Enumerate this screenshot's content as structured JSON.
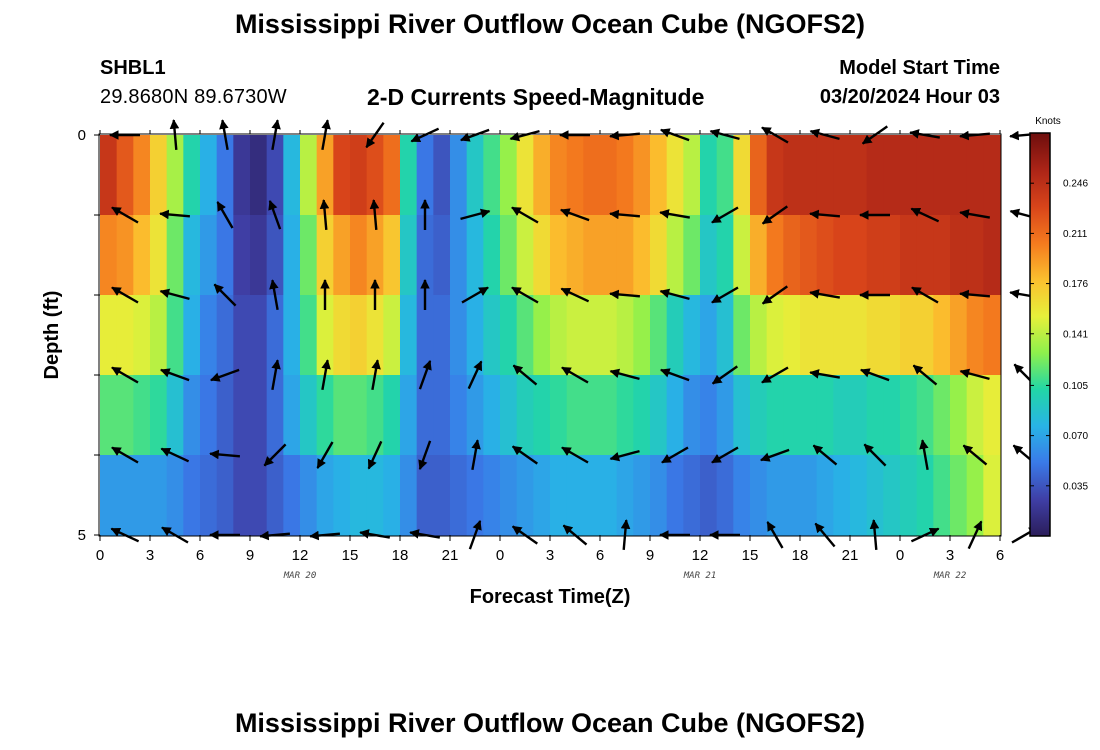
{
  "title": "Mississippi River Outflow Ocean Cube (NGOFS2)",
  "station": {
    "name": "SHBL1",
    "coords": "29.8680N  89.6730W"
  },
  "panel_title": "2-D Currents Speed-Magnitude",
  "model_start": {
    "label": "Model Start Time",
    "value": "03/20/2024 Hour 03"
  },
  "bottom_title": "Mississippi River Outflow Ocean Cube (NGOFS2)",
  "chart_data": {
    "type": "heatmap",
    "xlabel": "Forecast Time(Z)",
    "ylabel": "Depth (ft)",
    "x_tick_labels": [
      "0",
      "3",
      "6",
      "9",
      "12",
      "15",
      "18",
      "21",
      "0",
      "3",
      "6",
      "9",
      "12",
      "15",
      "18",
      "21",
      "0",
      "3",
      "6"
    ],
    "date_labels": [
      {
        "text": "MAR 20",
        "tick_index": 4
      },
      {
        "text": "MAR 21",
        "tick_index": 12
      },
      {
        "text": "MAR 22",
        "tick_index": 17
      }
    ],
    "y_tick_labels": [
      "0",
      "5"
    ],
    "ylim": [
      0,
      5
    ],
    "hours": 54,
    "layers": 5,
    "colorbar": {
      "unit": "Knots",
      "ticks": [
        "0.246",
        "0.211",
        "0.176",
        "0.141",
        "0.105",
        "0.070",
        "0.035"
      ],
      "min": 0.0,
      "max": 0.281,
      "colors": [
        "#2b1d5a",
        "#3f3fa6",
        "#3a7ae8",
        "#28b4e6",
        "#22d6a6",
        "#8ef04c",
        "#e6f03a",
        "#fbbf2e",
        "#f47a1e",
        "#d8441a",
        "#ab2417",
        "#6e0e0d"
      ]
    },
    "speed_profiles": [
      {
        "name": "depth-0",
        "values": [
          0.24,
          0.22,
          0.2,
          0.17,
          0.135,
          0.1,
          0.075,
          0.05,
          0.02,
          0.012,
          0.03,
          0.08,
          0.14,
          0.19,
          0.23,
          0.235,
          0.225,
          0.21,
          0.1,
          0.05,
          0.035,
          0.06,
          0.09,
          0.11,
          0.13,
          0.16,
          0.185,
          0.2,
          0.205,
          0.21,
          0.21,
          0.205,
          0.195,
          0.18,
          0.16,
          0.14,
          0.1,
          0.11,
          0.165,
          0.215,
          0.24,
          0.245,
          0.245,
          0.245,
          0.245,
          0.245,
          0.25,
          0.25,
          0.25,
          0.25,
          0.25,
          0.25,
          0.25,
          0.25,
          0.25
        ]
      },
      {
        "name": "depth-1",
        "values": [
          0.2,
          0.195,
          0.18,
          0.16,
          0.12,
          0.08,
          0.065,
          0.05,
          0.025,
          0.02,
          0.035,
          0.075,
          0.12,
          0.17,
          0.19,
          0.2,
          0.19,
          0.175,
          0.09,
          0.045,
          0.04,
          0.06,
          0.08,
          0.1,
          0.12,
          0.145,
          0.165,
          0.18,
          0.185,
          0.19,
          0.19,
          0.19,
          0.18,
          0.165,
          0.14,
          0.12,
          0.09,
          0.1,
          0.145,
          0.185,
          0.205,
          0.215,
          0.22,
          0.225,
          0.23,
          0.23,
          0.235,
          0.235,
          0.24,
          0.24,
          0.24,
          0.245,
          0.245,
          0.25,
          0.25
        ]
      },
      {
        "name": "depth-2",
        "values": [
          0.155,
          0.155,
          0.15,
          0.14,
          0.11,
          0.075,
          0.055,
          0.045,
          0.03,
          0.03,
          0.045,
          0.075,
          0.11,
          0.15,
          0.165,
          0.17,
          0.16,
          0.145,
          0.08,
          0.045,
          0.045,
          0.06,
          0.075,
          0.09,
          0.1,
          0.115,
          0.13,
          0.14,
          0.145,
          0.145,
          0.145,
          0.14,
          0.13,
          0.115,
          0.095,
          0.08,
          0.07,
          0.085,
          0.12,
          0.14,
          0.15,
          0.155,
          0.16,
          0.16,
          0.16,
          0.16,
          0.165,
          0.165,
          0.17,
          0.17,
          0.18,
          0.19,
          0.2,
          0.205,
          0.21
        ]
      },
      {
        "name": "depth-3",
        "values": [
          0.115,
          0.115,
          0.11,
          0.105,
          0.085,
          0.06,
          0.05,
          0.04,
          0.03,
          0.03,
          0.045,
          0.07,
          0.09,
          0.105,
          0.115,
          0.115,
          0.11,
          0.1,
          0.07,
          0.045,
          0.045,
          0.055,
          0.065,
          0.075,
          0.085,
          0.095,
          0.1,
          0.105,
          0.11,
          0.11,
          0.11,
          0.105,
          0.1,
          0.09,
          0.075,
          0.06,
          0.055,
          0.065,
          0.085,
          0.095,
          0.1,
          0.1,
          0.1,
          0.1,
          0.095,
          0.095,
          0.1,
          0.1,
          0.105,
          0.11,
          0.12,
          0.13,
          0.145,
          0.155,
          0.165
        ]
      },
      {
        "name": "depth-4",
        "values": [
          0.065,
          0.065,
          0.065,
          0.065,
          0.06,
          0.05,
          0.045,
          0.04,
          0.03,
          0.03,
          0.04,
          0.05,
          0.06,
          0.07,
          0.075,
          0.08,
          0.08,
          0.075,
          0.06,
          0.04,
          0.04,
          0.045,
          0.05,
          0.055,
          0.06,
          0.065,
          0.07,
          0.075,
          0.075,
          0.075,
          0.075,
          0.07,
          0.065,
          0.06,
          0.05,
          0.045,
          0.04,
          0.045,
          0.055,
          0.06,
          0.065,
          0.065,
          0.065,
          0.07,
          0.075,
          0.08,
          0.085,
          0.09,
          0.095,
          0.1,
          0.11,
          0.12,
          0.13,
          0.15,
          0.16
        ]
      }
    ],
    "arrow_angles_deg": [
      [
        180,
        95,
        100,
        80,
        80,
        235,
        205,
        200,
        195,
        180,
        185,
        160,
        165,
        150,
        165,
        215,
        170,
        185,
        185
      ],
      [
        150,
        175,
        120,
        110,
        95,
        95,
        90,
        15,
        150,
        160,
        175,
        170,
        210,
        215,
        175,
        180,
        155,
        170,
        165
      ],
      [
        150,
        165,
        135,
        100,
        90,
        90,
        90,
        30,
        150,
        155,
        175,
        165,
        210,
        215,
        170,
        180,
        150,
        175,
        170
      ],
      [
        150,
        160,
        200,
        80,
        80,
        80,
        70,
        65,
        140,
        150,
        165,
        160,
        215,
        210,
        170,
        160,
        140,
        165,
        135
      ],
      [
        150,
        155,
        175,
        225,
        240,
        245,
        250,
        80,
        145,
        150,
        195,
        210,
        210,
        200,
        140,
        135,
        100,
        140,
        140
      ],
      [
        155,
        150,
        180,
        185,
        185,
        170,
        170,
        70,
        145,
        140,
        85,
        180,
        180,
        120,
        130,
        95,
        25,
        65,
        30
      ]
    ]
  }
}
